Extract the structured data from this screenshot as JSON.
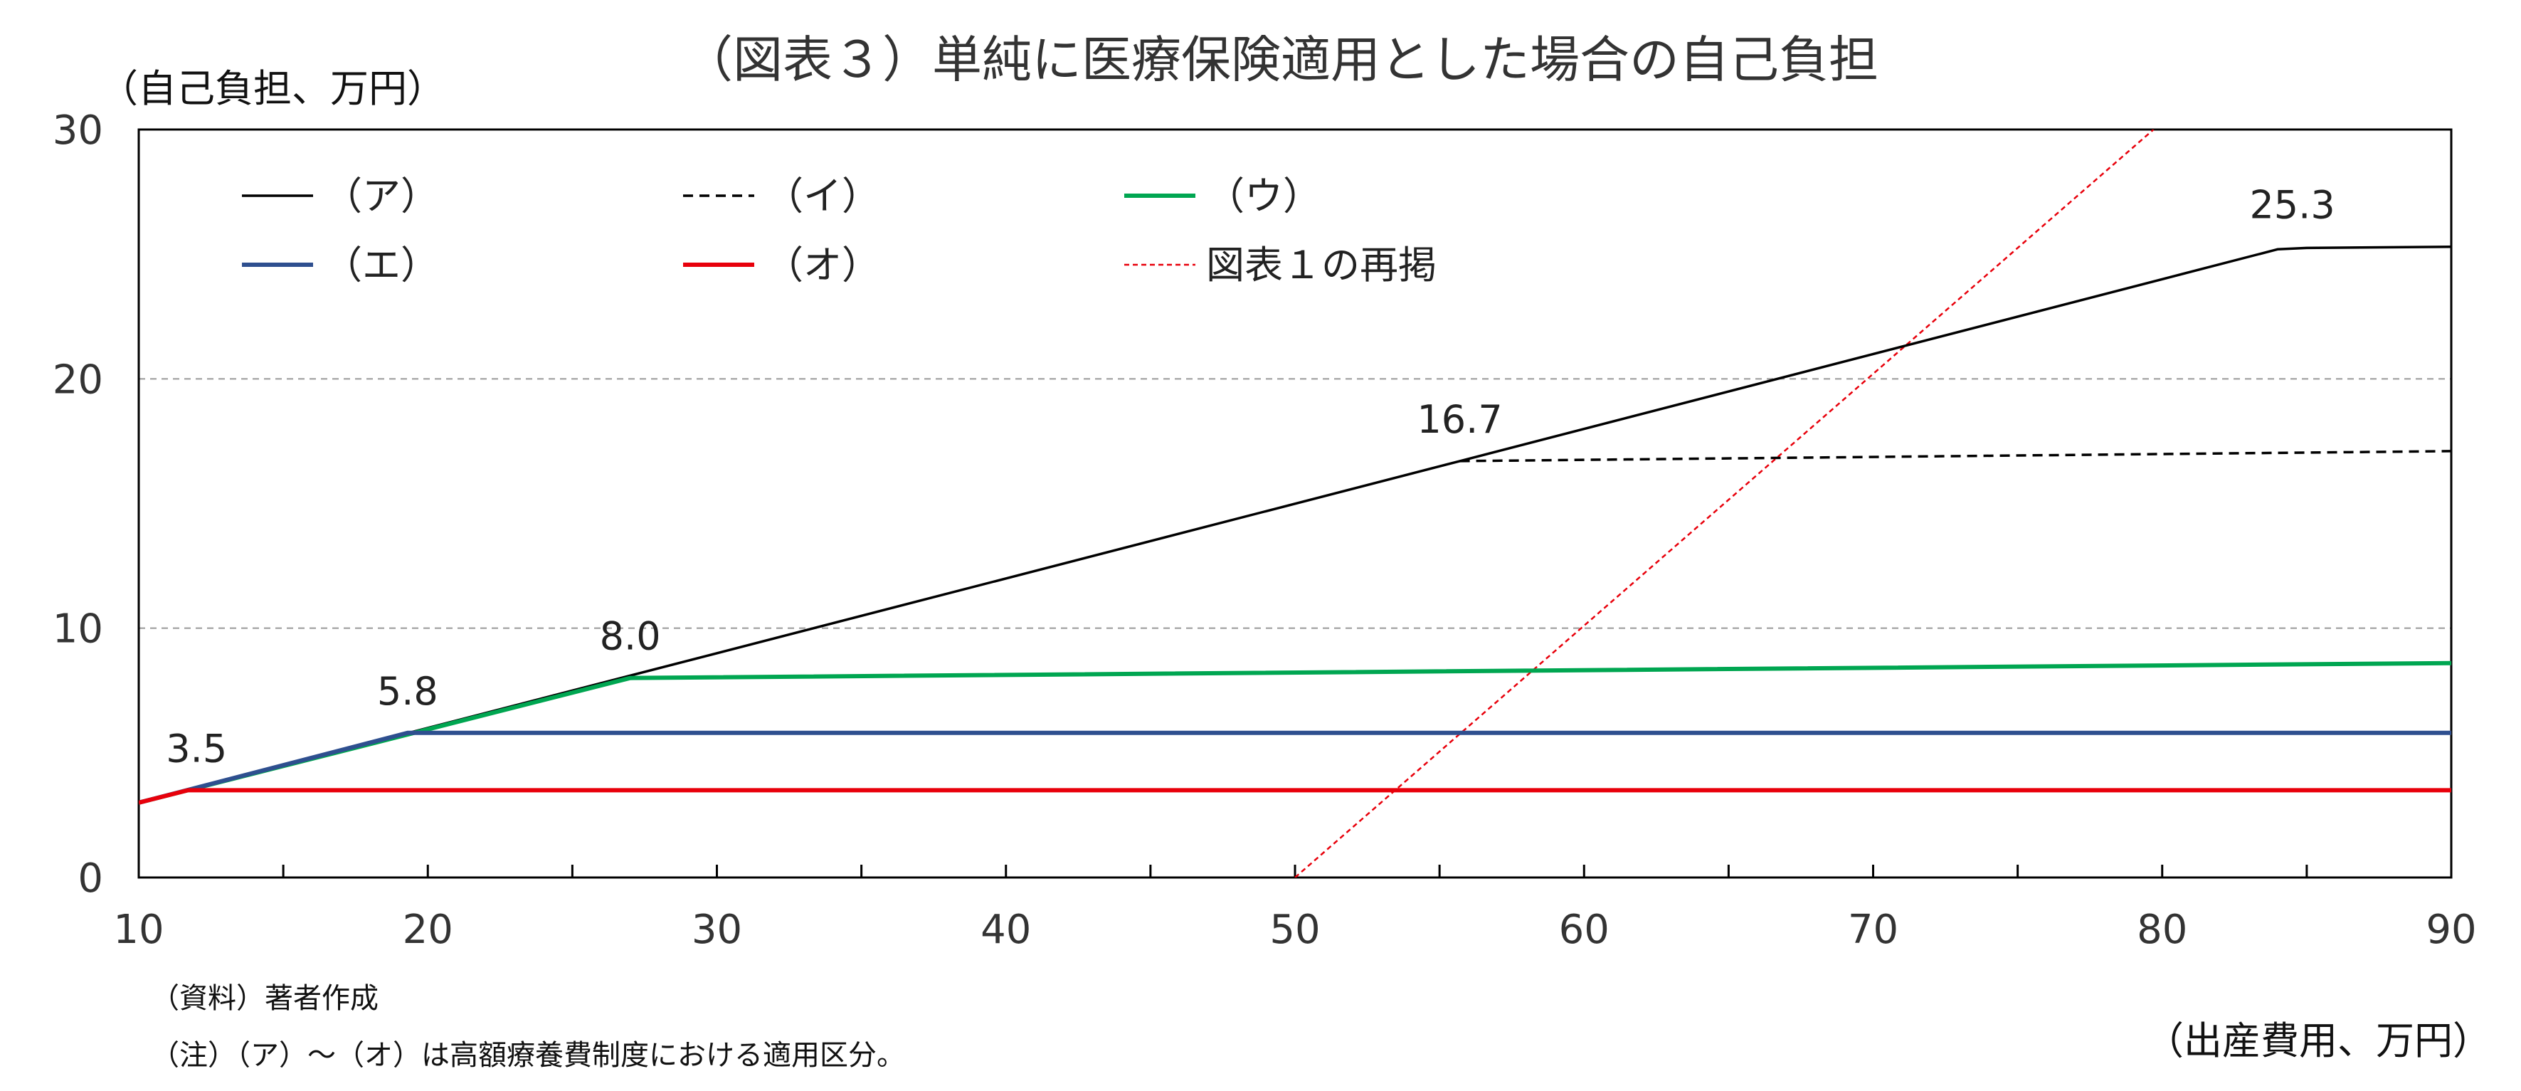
{
  "chart_data": {
    "type": "line",
    "title": "（図表３）単純に医療保険適用とした場合の自己負担",
    "ylabel": "（自己負担、万円）",
    "xlabel": "（出産費用、万円）",
    "xlim": [
      10,
      90
    ],
    "ylim": [
      0,
      30
    ],
    "x_ticks": [
      10,
      20,
      30,
      40,
      50,
      60,
      70,
      80,
      90
    ],
    "y_ticks": [
      0,
      10,
      20,
      30
    ],
    "grid": "horizontal dashed",
    "legend_position": "top-left (inside plot, 2 rows × 3 columns)",
    "series": [
      {
        "name": "（ア）",
        "color": "#000000",
        "dash": "solid",
        "width": 3.5,
        "points": [
          [
            10,
            3.0
          ],
          [
            55.7,
            16.7
          ],
          [
            84,
            25.2
          ],
          [
            85,
            25.25
          ],
          [
            90,
            25.3
          ]
        ]
      },
      {
        "name": "（イ）",
        "color": "#000000",
        "dash": "dashed",
        "width": 3.5,
        "points": [
          [
            55.7,
            16.7
          ],
          [
            90,
            17.1
          ]
        ]
      },
      {
        "name": "（ウ）",
        "color": "#00A651",
        "dash": "solid",
        "width": 6,
        "points": [
          [
            10,
            3.0
          ],
          [
            27,
            8.0
          ],
          [
            90,
            8.6
          ]
        ]
      },
      {
        "name": "（エ）",
        "color": "#2E4F8F",
        "dash": "solid",
        "width": 6,
        "points": [
          [
            10,
            3.0
          ],
          [
            19.3,
            5.8
          ],
          [
            90,
            5.8
          ]
        ]
      },
      {
        "name": "（オ）",
        "color": "#E8000B",
        "dash": "solid",
        "width": 6,
        "points": [
          [
            10,
            3.0
          ],
          [
            11.7,
            3.5
          ],
          [
            90,
            3.5
          ]
        ]
      },
      {
        "name": "図表１の再掲",
        "color": "#E8000B",
        "dash": "dotted",
        "width": 2.5,
        "points": [
          [
            50,
            0
          ],
          [
            79.7,
            30
          ]
        ]
      }
    ],
    "data_labels": [
      {
        "text": "3.5",
        "x": 12.0,
        "y": 3.5
      },
      {
        "text": "5.8",
        "x": 19.3,
        "y": 5.8
      },
      {
        "text": "8.0",
        "x": 27.0,
        "y": 8.0
      },
      {
        "text": "16.7",
        "x": 55.7,
        "y": 16.7
      },
      {
        "text": "25.3",
        "x": 84.5,
        "y": 25.3
      }
    ]
  },
  "notes": {
    "source": "（資料）著者作成",
    "note": "（注）（ア）～（オ）は高額療養費制度における適用区分。"
  }
}
